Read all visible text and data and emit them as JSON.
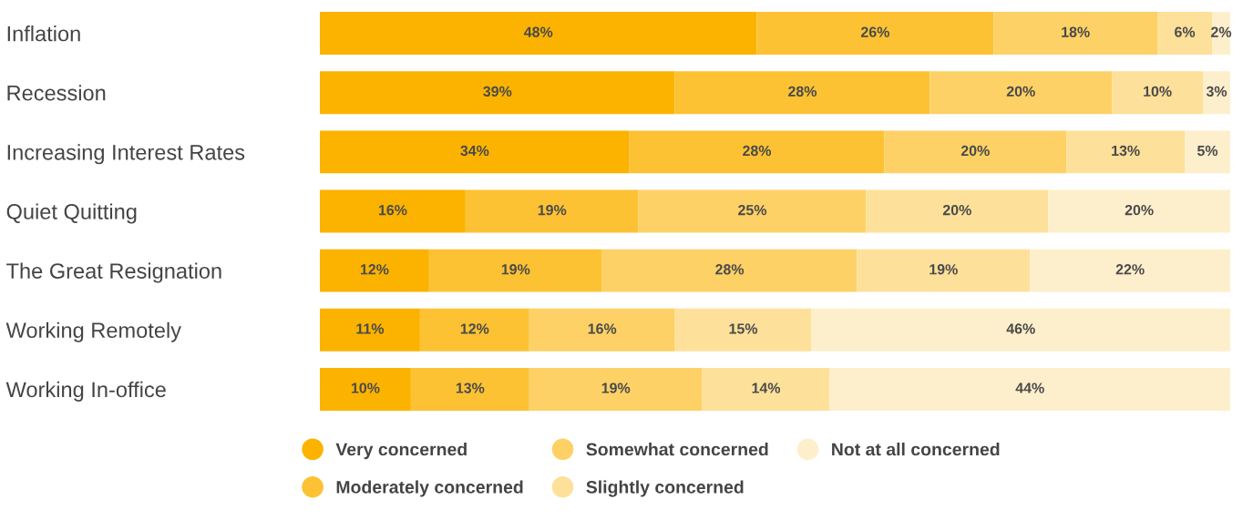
{
  "chart_data": {
    "type": "bar",
    "orientation": "horizontal",
    "stacked": true,
    "legend": "bottom",
    "marker": "circle",
    "grid": false,
    "tick_labels": "y",
    "xlim": [
      0,
      100
    ],
    "categories": [
      "Inflation",
      "Recession",
      "Increasing Interest Rates",
      "Quiet Quitting",
      "The Great Resignation",
      "Working Remotely",
      "Working In-office"
    ],
    "series": [
      {
        "name": "Very concerned",
        "color": "#fbb300",
        "values": [
          48,
          39,
          34,
          16,
          12,
          11,
          10
        ],
        "value_labels": [
          "48%",
          "39%",
          "34%",
          "16%",
          "12%",
          "11%",
          "10%"
        ]
      },
      {
        "name": "Moderately concerned",
        "color": "#fcc234",
        "values": [
          26,
          28,
          28,
          19,
          19,
          12,
          13
        ],
        "value_labels": [
          "26%",
          "28%",
          "28%",
          "19%",
          "19%",
          "12%",
          "13%"
        ]
      },
      {
        "name": "Somewhat concerned",
        "color": "#fdd166",
        "values": [
          18,
          20,
          20,
          25,
          28,
          16,
          19
        ],
        "value_labels": [
          "18%",
          "20%",
          "20%",
          "25%",
          "28%",
          "16%",
          "19%"
        ]
      },
      {
        "name": "Slightly concerned",
        "color": "#fde09a",
        "values": [
          6,
          10,
          13,
          20,
          19,
          15,
          14
        ],
        "value_labels": [
          "6%",
          "10%",
          "13%",
          "20%",
          "19%",
          "15%",
          "14%"
        ]
      },
      {
        "name": "Not at all concerned",
        "color": "#feefcc",
        "values": [
          2,
          3,
          5,
          20,
          22,
          46,
          44
        ],
        "value_labels": [
          "2%",
          "3%",
          "5%",
          "20%",
          "22%",
          "46%",
          "44%"
        ]
      }
    ]
  }
}
